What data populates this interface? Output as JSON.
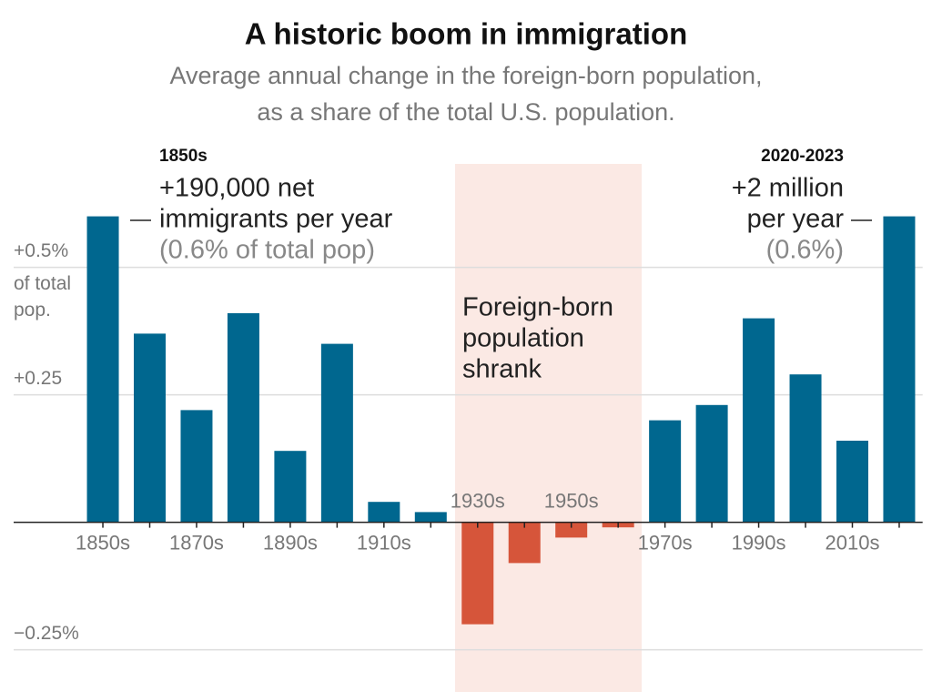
{
  "chart_data": {
    "type": "bar",
    "title": "A historic boom in immigration",
    "subtitle": [
      "Average annual change in the foreign-born population,",
      "as a share of the total U.S. population."
    ],
    "categories": [
      "1850s",
      null,
      "1870s",
      null,
      "1890s",
      null,
      "1910s",
      null,
      "1930s",
      null,
      "1950s",
      null,
      "1970s",
      null,
      "1990s",
      null,
      "2010s",
      null
    ],
    "values": [
      0.6,
      0.37,
      0.22,
      0.41,
      0.14,
      0.35,
      0.04,
      0.02,
      -0.2,
      -0.08,
      -0.03,
      -0.01,
      0.2,
      0.23,
      0.4,
      0.29,
      0.16,
      0.6
    ],
    "color": "#00678f",
    "negative_color": "#d6553a",
    "ylim": [
      -0.28,
      0.63
    ],
    "yticks": [
      {
        "value": 0.5,
        "label": "+0.5%"
      },
      {
        "value": 0.25,
        "label": "+0.25"
      },
      {
        "value": -0.25,
        "label": "−0.25%"
      }
    ],
    "ytick_note": [
      "of total",
      "pop."
    ],
    "grid": true,
    "shaded_note": [
      "Foreign-born",
      "population",
      "shrank"
    ],
    "annotations": [
      {
        "heading": "1850s",
        "lines": [
          "+190,000 net",
          "immigrants per year",
          "(0.6% of total pop)"
        ]
      },
      {
        "heading": "2020-2023",
        "lines": [
          "+2 million",
          "per year",
          "(0.6%)"
        ]
      }
    ]
  }
}
